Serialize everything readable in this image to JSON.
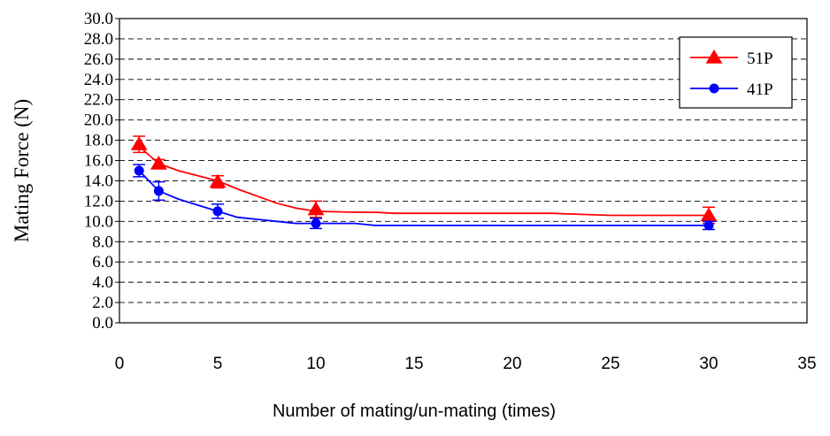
{
  "chart_data": {
    "type": "line",
    "title": "",
    "xlabel": "Number of mating/un-mating (times)",
    "ylabel": "Mating Force (N)",
    "xlim": [
      0,
      35
    ],
    "ylim": [
      0,
      30
    ],
    "x_ticks": [
      "0",
      "5",
      "10",
      "15",
      "20",
      "25",
      "30",
      "35"
    ],
    "y_ticks": [
      "0.0",
      "2.0",
      "4.0",
      "6.0",
      "8.0",
      "10.0",
      "12.0",
      "14.0",
      "16.0",
      "18.0",
      "20.0",
      "22.0",
      "24.0",
      "26.0",
      "28.0",
      "30.0"
    ],
    "grid": "horizontal dashed",
    "legend_position": "top-right",
    "series": [
      {
        "name": "51P",
        "color": "#ff0000",
        "marker": "triangle",
        "points": [
          {
            "x": 1,
            "y": 17.6,
            "err": 0.8
          },
          {
            "x": 2,
            "y": 15.7,
            "err": 0.4
          },
          {
            "x": 5,
            "y": 13.9,
            "err": 0.6
          },
          {
            "x": 10,
            "y": 11.2,
            "err": 0.8
          },
          {
            "x": 30,
            "y": 10.6,
            "err": 0.8
          }
        ],
        "trend": [
          [
            1,
            17.4
          ],
          [
            2,
            15.7
          ],
          [
            3,
            15.0
          ],
          [
            4,
            14.5
          ],
          [
            5,
            14.0
          ],
          [
            6,
            13.2
          ],
          [
            7,
            12.5
          ],
          [
            8,
            11.8
          ],
          [
            9,
            11.3
          ],
          [
            10,
            11.0
          ],
          [
            12,
            10.9
          ],
          [
            13,
            10.9
          ],
          [
            14,
            10.8
          ],
          [
            20,
            10.8
          ],
          [
            22,
            10.8
          ],
          [
            25,
            10.6
          ],
          [
            30,
            10.6
          ]
        ]
      },
      {
        "name": "41P",
        "color": "#0000ff",
        "marker": "circle",
        "points": [
          {
            "x": 1,
            "y": 15.0,
            "err": 0.6
          },
          {
            "x": 2,
            "y": 13.0,
            "err": 0.9
          },
          {
            "x": 5,
            "y": 11.0,
            "err": 0.7
          },
          {
            "x": 10,
            "y": 9.8,
            "err": 0.5
          },
          {
            "x": 30,
            "y": 9.6,
            "err": 0.4
          }
        ],
        "trend": [
          [
            1,
            15.0
          ],
          [
            1.5,
            14.0
          ],
          [
            2,
            13.0
          ],
          [
            3,
            12.2
          ],
          [
            4,
            11.6
          ],
          [
            5,
            11.0
          ],
          [
            6,
            10.4
          ],
          [
            7,
            10.2
          ],
          [
            8,
            10.0
          ],
          [
            9,
            9.8
          ],
          [
            10,
            9.8
          ],
          [
            12,
            9.8
          ],
          [
            13,
            9.6
          ],
          [
            30,
            9.6
          ]
        ]
      }
    ]
  }
}
